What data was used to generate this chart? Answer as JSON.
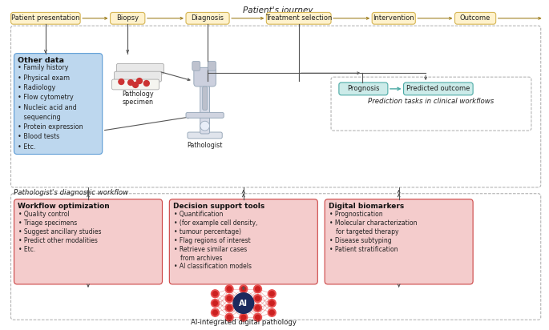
{
  "title_journey": "Patient's journey",
  "journey_boxes": [
    "Patient presentation",
    "Biopsy",
    "Diagnosis",
    "Treatment selection",
    "Intervention",
    "Outcome"
  ],
  "journey_box_fc": "#FFF2CC",
  "journey_box_ec": "#D6B656",
  "journey_arrow_color": "#A08020",
  "other_data_title": "Other data",
  "other_data_items": [
    "Family history",
    "Physical exam",
    "Radiology",
    "Flow cytometry",
    "Nucleic acid and",
    "  sequencing",
    "Protein expression",
    "Blood tests",
    "Etc."
  ],
  "other_data_bg": "#BDD7EE",
  "other_data_ec": "#5B9BD5",
  "pathologist_label": "Pathologist's diagnostic workflow",
  "prediction_title": "Prediction tasks in clinical workflows",
  "prediction_box1": "Prognosis",
  "prediction_box2": "Predicted outcome",
  "prediction_bg": "#CCEBE9",
  "prediction_ec": "#4BAAA5",
  "prediction_arrow": "#4BAAA5",
  "workflow_titles": [
    "Workflow optimization",
    "Decision support tools",
    "Digital biomarkers"
  ],
  "workflow_items": [
    [
      "Quality control",
      "Triage specimens",
      "Suggest ancillary studies",
      "Predict other modalities",
      "Etc."
    ],
    [
      "Quantification",
      "(for example cell density,",
      "tumour percentage)",
      "Flag regions of interest",
      "Retrieve similar cases",
      "  from archives",
      "AI classification models"
    ],
    [
      "Prognostication",
      "Molecular characterization",
      "  for targeted therapy",
      "Disease subtyping",
      "Patient stratification"
    ]
  ],
  "workflow_bg": "#F4CCCC",
  "workflow_ec": "#CC4444",
  "ai_label": "AI-integrated digital pathology",
  "pathology_specimen_label": "Pathology\nspecimen",
  "pathologist_img_label": "Pathologist",
  "arrow_color": "#555555",
  "line_color": "#555555",
  "dash_color": "#AAAAAA",
  "bg_color": "#FFFFFF",
  "font_color": "#222222",
  "bold_color": "#111111"
}
